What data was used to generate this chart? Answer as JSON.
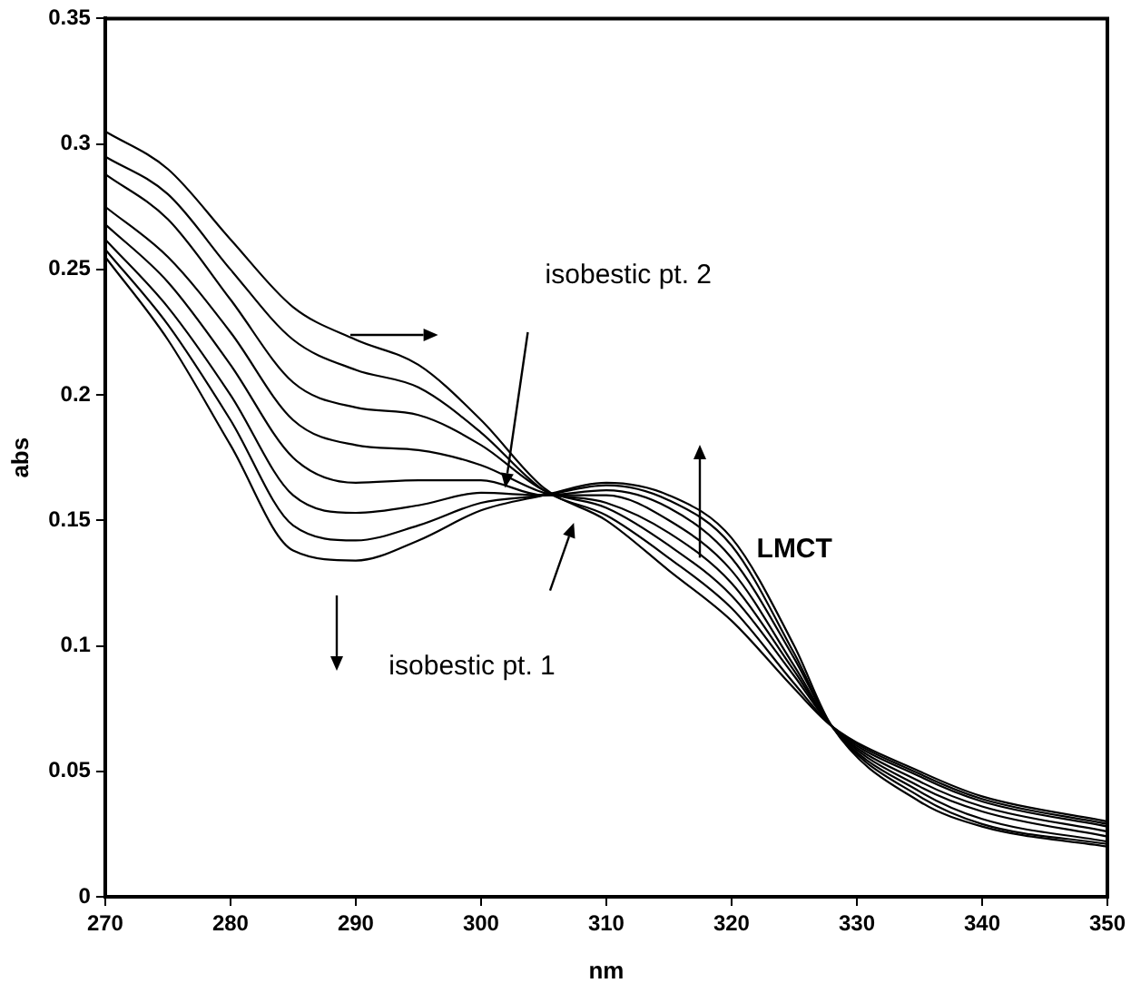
{
  "chart_data": {
    "type": "line",
    "xlabel": "nm",
    "ylabel": "abs",
    "x": [
      270,
      275,
      280,
      285,
      290,
      295,
      300,
      305,
      310,
      315,
      320,
      325,
      328,
      335,
      340,
      350
    ],
    "series": [
      {
        "color": "#000000",
        "values": [
          0.305,
          0.29,
          0.262,
          0.235,
          0.222,
          0.212,
          0.19,
          0.163,
          0.15,
          0.13,
          0.11,
          0.083,
          0.068,
          0.05,
          0.04,
          0.03
        ]
      },
      {
        "color": "#000000",
        "values": [
          0.295,
          0.28,
          0.25,
          0.222,
          0.21,
          0.203,
          0.185,
          0.162,
          0.152,
          0.135,
          0.115,
          0.085,
          0.068,
          0.049,
          0.039,
          0.029
        ]
      },
      {
        "color": "#000000",
        "values": [
          0.288,
          0.27,
          0.238,
          0.205,
          0.195,
          0.192,
          0.18,
          0.162,
          0.155,
          0.14,
          0.12,
          0.088,
          0.068,
          0.048,
          0.038,
          0.028
        ]
      },
      {
        "color": "#000000",
        "values": [
          0.275,
          0.255,
          0.225,
          0.19,
          0.18,
          0.178,
          0.172,
          0.161,
          0.157,
          0.145,
          0.125,
          0.09,
          0.068,
          0.046,
          0.036,
          0.026
        ]
      },
      {
        "color": "#000000",
        "values": [
          0.268,
          0.245,
          0.212,
          0.175,
          0.165,
          0.166,
          0.166,
          0.16,
          0.16,
          0.15,
          0.13,
          0.092,
          0.068,
          0.044,
          0.034,
          0.024
        ]
      },
      {
        "color": "#000000",
        "values": [
          0.262,
          0.235,
          0.2,
          0.16,
          0.153,
          0.156,
          0.161,
          0.16,
          0.162,
          0.155,
          0.135,
          0.095,
          0.068,
          0.042,
          0.031,
          0.022
        ]
      },
      {
        "color": "#000000",
        "values": [
          0.258,
          0.228,
          0.19,
          0.148,
          0.142,
          0.148,
          0.157,
          0.16,
          0.164,
          0.158,
          0.14,
          0.097,
          0.068,
          0.04,
          0.029,
          0.021
        ]
      },
      {
        "color": "#000000",
        "values": [
          0.255,
          0.222,
          0.18,
          0.138,
          0.134,
          0.142,
          0.154,
          0.16,
          0.165,
          0.16,
          0.143,
          0.1,
          0.068,
          0.038,
          0.028,
          0.02
        ]
      }
    ],
    "xlim": [
      270,
      350
    ],
    "xticks": [
      270,
      280,
      290,
      300,
      310,
      320,
      330,
      340,
      350
    ],
    "ylim": [
      0,
      0.35
    ],
    "yticks": [
      0,
      0.05,
      0.1,
      0.15,
      0.2,
      0.25,
      0.3,
      0.35
    ],
    "grid": false,
    "legend": false,
    "marker": "none",
    "line_style": "solid",
    "annotations": [
      "isobestic pt. 2",
      "isobestic pt. 1",
      "LMCT"
    ]
  }
}
